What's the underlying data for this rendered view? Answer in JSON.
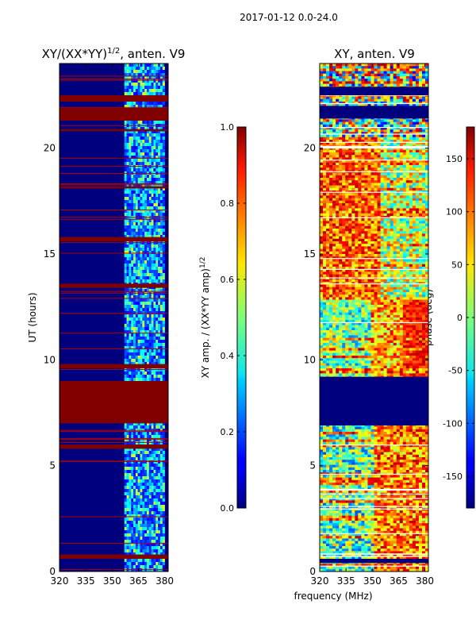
{
  "figure_title": "2017-01-12 0.0-24.0",
  "shared_xlabel": "frequency (MHz)",
  "chart_data": [
    {
      "type": "heatmap",
      "title_main": "XY/(XX*YY)",
      "title_exp": "1/2",
      "title_suffix": ", anten. V9",
      "ylabel": "UT (hours)",
      "xlim": [
        320,
        382
      ],
      "ylim": [
        0,
        24
      ],
      "xticks": [
        320,
        335,
        350,
        365,
        380
      ],
      "yticks": [
        0,
        5,
        10,
        15,
        20
      ],
      "colorbar": {
        "label_main": "XY amp. / (XX*YY amp)",
        "label_exp": "1/2",
        "range": [
          0.0,
          1.0
        ],
        "ticks": [
          "0.0",
          "0.2",
          "0.4",
          "0.6",
          "0.8",
          "1.0"
        ],
        "tick_values": [
          0.0,
          0.2,
          0.4,
          0.6,
          0.8,
          1.0
        ],
        "colormap": "jet"
      },
      "dark_red_bands_hours": [
        [
          7.0,
          9.0
        ],
        [
          0.6,
          0.8
        ],
        [
          21.3,
          21.9
        ],
        [
          22.2,
          22.5
        ],
        [
          13.4,
          13.6
        ],
        [
          9.6,
          9.8
        ],
        [
          15.6,
          15.8
        ],
        [
          5.8,
          6.0
        ],
        [
          18.1,
          18.2
        ],
        [
          20.8,
          20.9
        ]
      ],
      "active_freq_range_MHz": [
        357,
        380
      ]
    },
    {
      "type": "heatmap",
      "title": "XY, anten. V9",
      "ylabel": "",
      "xlim": [
        320,
        382
      ],
      "ylim": [
        0,
        24
      ],
      "xticks": [
        320,
        335,
        350,
        365,
        380
      ],
      "yticks": [
        0,
        5,
        10,
        15,
        20
      ],
      "colorbar": {
        "label": "phase (deg)",
        "range": [
          -180,
          180
        ],
        "ticks": [
          "-150",
          "-100",
          "-50",
          "0",
          "50",
          "100",
          "150"
        ],
        "tick_values": [
          -150,
          -100,
          -50,
          0,
          50,
          100,
          150
        ],
        "colormap": "jet"
      },
      "dark_blue_bands_hours": [
        [
          6.9,
          9.2
        ],
        [
          0.4,
          0.6
        ],
        [
          21.4,
          22.0
        ],
        [
          22.5,
          22.9
        ]
      ]
    }
  ],
  "colors": {
    "jet_dark_red": "#800000",
    "jet_dark_blue": "#00007f"
  }
}
